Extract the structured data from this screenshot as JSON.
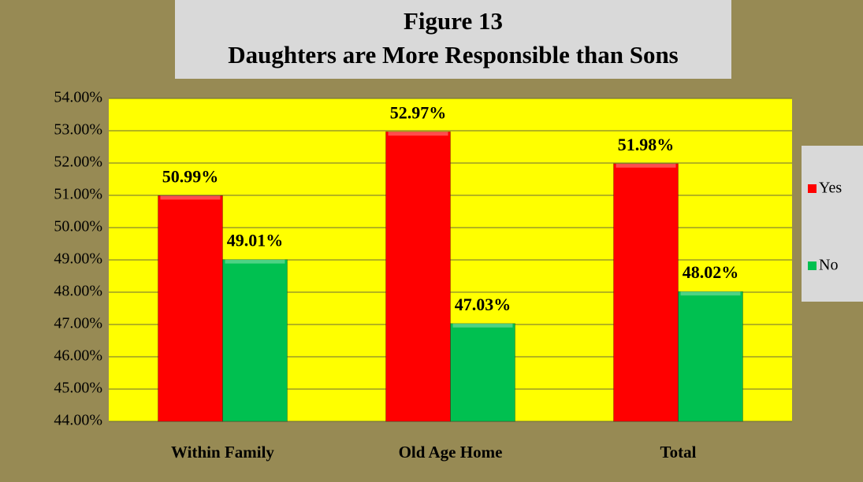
{
  "chart_data": {
    "type": "bar",
    "title": "Figure 13",
    "subtitle": "Daughters are More Responsible than Sons",
    "categories": [
      "Within Family",
      "Old Age Home",
      "Total"
    ],
    "series": [
      {
        "name": "Yes",
        "color": "#ff0000",
        "values": [
          50.99,
          52.97,
          51.98
        ],
        "value_labels": [
          "50.99%",
          "52.97%",
          "51.98%"
        ]
      },
      {
        "name": "No",
        "color": "#00c050",
        "values": [
          49.01,
          47.03,
          48.02
        ],
        "value_labels": [
          "49.01%",
          "47.03%",
          "48.02%"
        ]
      }
    ],
    "ylim": [
      44,
      54
    ],
    "yticks": [
      {
        "value": 44,
        "label": "44.00%"
      },
      {
        "value": 45,
        "label": "45.00%"
      },
      {
        "value": 46,
        "label": "46.00%"
      },
      {
        "value": 47,
        "label": "47.00%"
      },
      {
        "value": 48,
        "label": "48.00%"
      },
      {
        "value": 49,
        "label": "49.00%"
      },
      {
        "value": 50,
        "label": "50.00%"
      },
      {
        "value": 51,
        "label": "51.00%"
      },
      {
        "value": 52,
        "label": "52.00%"
      },
      {
        "value": 53,
        "label": "53.00%"
      },
      {
        "value": 54,
        "label": "54.00%"
      }
    ],
    "grid": true,
    "legend": "right"
  }
}
